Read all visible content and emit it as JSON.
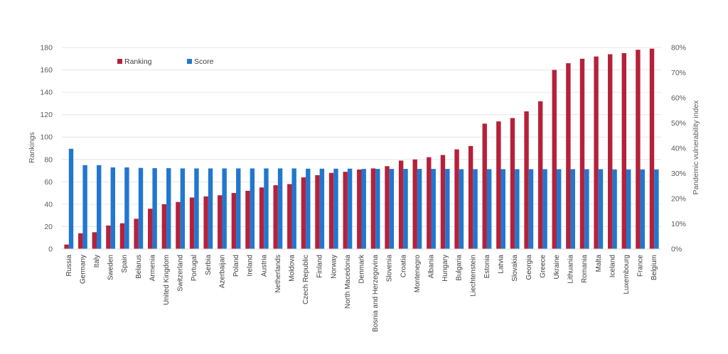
{
  "chart_data": {
    "type": "bar",
    "title": "",
    "xlabel": "",
    "ylabel": "Rankings",
    "y2label": "Pandemic vulnerability index",
    "ylim": [
      0,
      180
    ],
    "y2lim": [
      0,
      80
    ],
    "y_ticks": [
      "0",
      "20",
      "40",
      "60",
      "80",
      "100",
      "120",
      "140",
      "160",
      "180"
    ],
    "y2_ticks": [
      "0%",
      "10%",
      "20%",
      "30%",
      "40%",
      "50%",
      "60%",
      "70%",
      "80%"
    ],
    "grid": true,
    "legend": "top-left",
    "categories": [
      "Russia",
      "Germany",
      "Italy",
      "Sweden",
      "Spain",
      "Belarus",
      "Armenia",
      "United Kingdom",
      "Switzerland",
      "Portugal",
      "Serbia",
      "Azerbaijan",
      "Poland",
      "Ireland",
      "Austria",
      "Netherlands",
      "Moldova",
      "Czech Republic",
      "Finland",
      "Norway",
      "North Macedonia",
      "Denmark",
      "Bosnia and Herzegovina",
      "Slovenia",
      "Croatia",
      "Montenegro",
      "Albania",
      "Hungary",
      "Bulgaria",
      "Liechtenstein",
      "Estonia",
      "Latvia",
      "Slovakia",
      "Georgia",
      "Greece",
      "Ukraine",
      "Lithuania",
      "Romania",
      "Malta",
      "Iceland",
      "Luxembourg",
      "France",
      "Belgium"
    ],
    "series": [
      {
        "name": "Ranking",
        "axis": "left",
        "color": "#B5213A",
        "values": [
          4,
          14,
          15,
          21,
          23,
          27,
          36,
          40,
          42,
          46,
          47,
          48,
          50,
          52,
          55,
          57,
          58,
          64,
          66,
          68,
          69,
          71,
          72,
          74,
          79,
          80,
          82,
          84,
          89,
          92,
          112,
          114,
          117,
          123,
          132,
          160,
          166,
          170,
          172,
          174,
          175,
          178,
          179
        ]
      },
      {
        "name": "Score",
        "axis": "right",
        "color": "#2177CF",
        "values": [
          39.8,
          33.3,
          33.3,
          32.4,
          32.4,
          32.2,
          32.1,
          32.1,
          32.0,
          32.0,
          32.0,
          32.0,
          32.0,
          32.0,
          32.0,
          32.0,
          32.0,
          31.9,
          31.9,
          31.9,
          31.9,
          31.8,
          31.8,
          31.8,
          31.8,
          31.8,
          31.8,
          31.8,
          31.7,
          31.7,
          31.7,
          31.7,
          31.7,
          31.7,
          31.7,
          31.7,
          31.7,
          31.7,
          31.7,
          31.6,
          31.6,
          31.6,
          31.6
        ]
      }
    ]
  }
}
